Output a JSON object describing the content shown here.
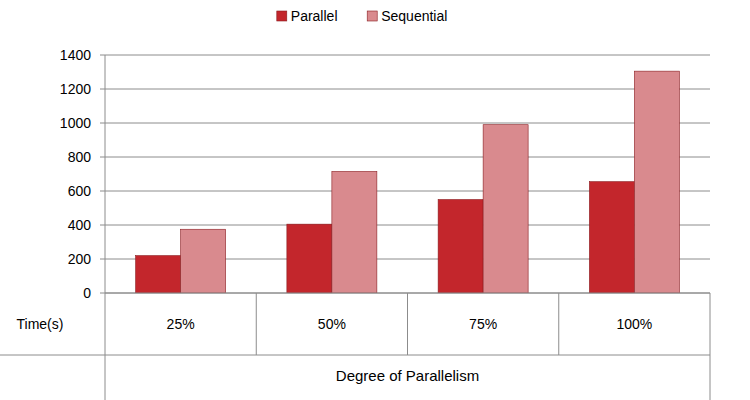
{
  "chart_data": {
    "type": "bar",
    "x_label": "Degree of Parallelism",
    "y_label": "Time(s)",
    "categories": [
      "25%",
      "50%",
      "75%",
      "100%"
    ],
    "series": [
      {
        "name": "Parallel",
        "color": "#c3262c",
        "values": [
          220,
          405,
          550,
          655
        ]
      },
      {
        "name": "Sequential",
        "color": "#d98a8e",
        "values": [
          375,
          715,
          990,
          1305
        ]
      }
    ],
    "ylim": [
      0,
      1400
    ],
    "yticks": [
      0,
      200,
      400,
      600,
      800,
      1000,
      1200,
      1400
    ],
    "grid": true,
    "legend": "top"
  }
}
